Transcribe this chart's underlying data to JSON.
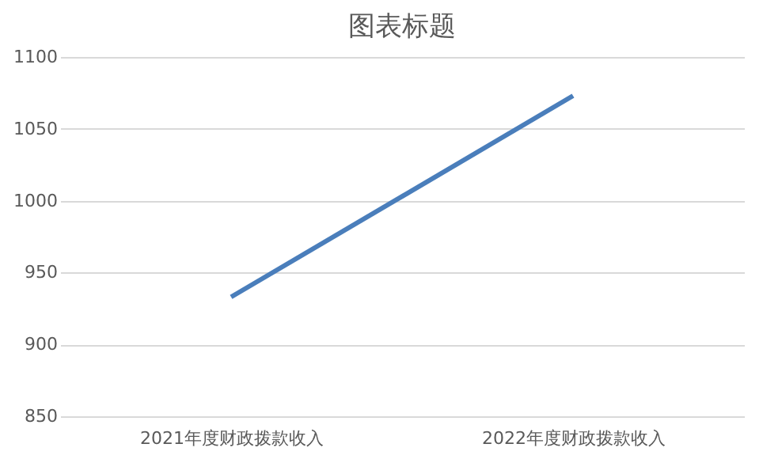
{
  "chart_data": {
    "type": "line",
    "title": "图表标题",
    "categories": [
      "2021年度财政拨款收入",
      "2022年度财政拨款收入"
    ],
    "series": [
      {
        "color": "#4a7ebb",
        "values": [
          933,
          1073
        ]
      }
    ],
    "ylim": [
      850,
      1100
    ],
    "yticks": [
      850,
      900,
      950,
      1000,
      1050,
      1100
    ],
    "grid": "y",
    "legend": false,
    "marker": "none",
    "line_style": "solid"
  }
}
